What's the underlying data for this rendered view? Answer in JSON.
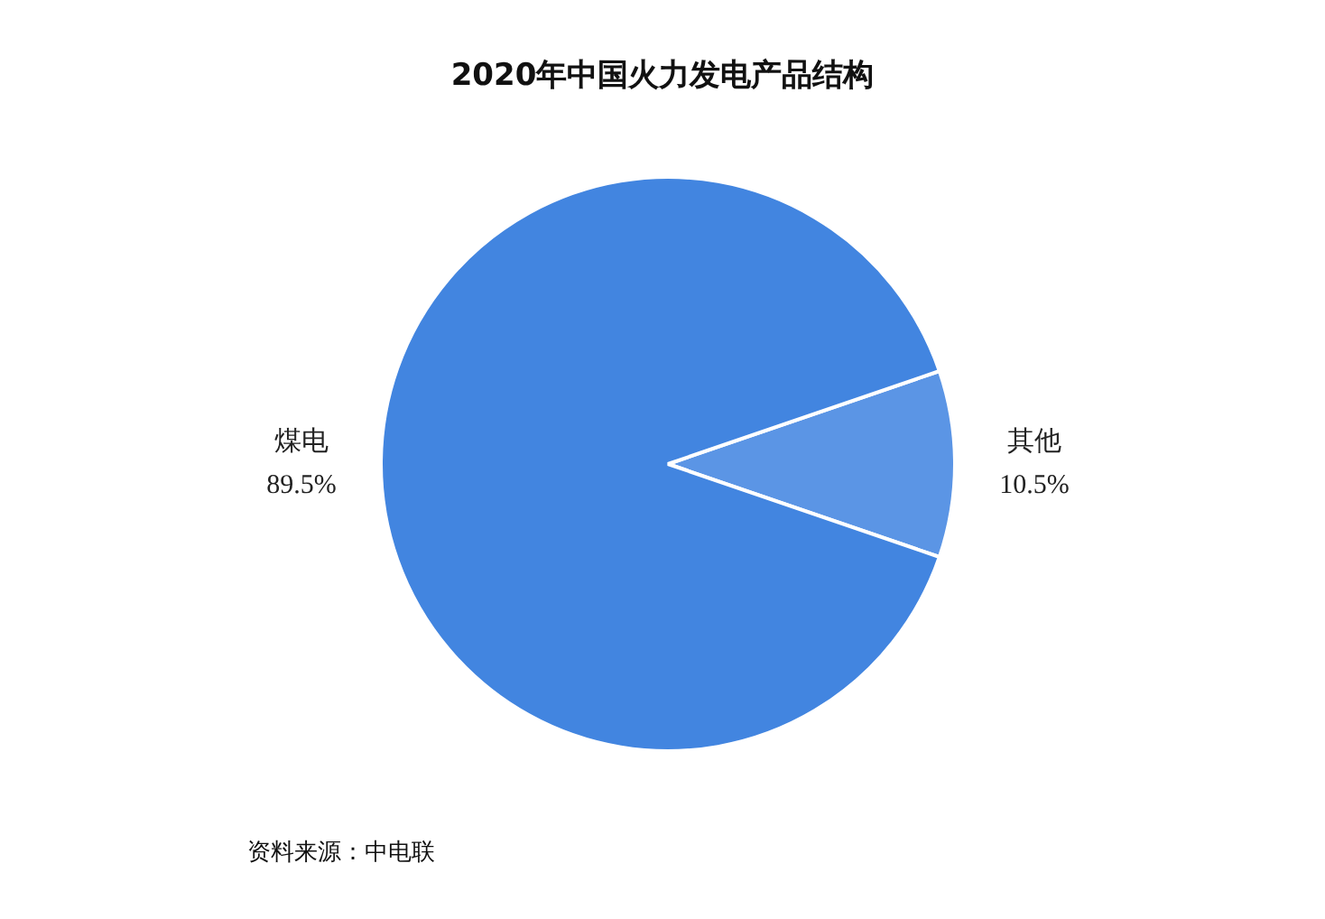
{
  "chart_data": {
    "type": "pie",
    "title": "2020年中国火力发电产品结构",
    "categories": [
      "其他",
      "煤电"
    ],
    "values": [
      10.5,
      89.5
    ],
    "colors": [
      "#5b95e5",
      "#4285e0"
    ],
    "value_labels": [
      "10.5%",
      "89.5%"
    ],
    "legend": false,
    "annotations": [
      "资料来源：中电联"
    ]
  }
}
